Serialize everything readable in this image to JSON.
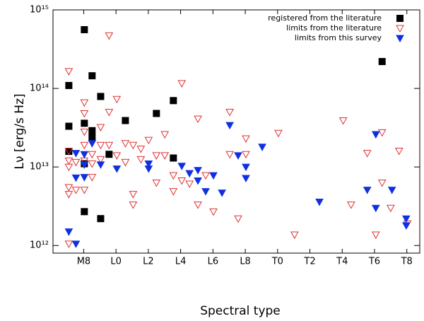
{
  "chart_data": {
    "type": "scatter",
    "x_label": "Spectral type",
    "y_label": "Lν [erg/s Hz]",
    "log_y": true,
    "legend": "top-right",
    "xlim": [
      6.1,
      28.8
    ],
    "ylim": [
      800000000000.0,
      1000000000000000.0
    ],
    "xticks": [
      {
        "value": 8,
        "label": "M8"
      },
      {
        "value": 10,
        "label": "L0"
      },
      {
        "value": 12,
        "label": "L2"
      },
      {
        "value": 14,
        "label": "L4"
      },
      {
        "value": 16,
        "label": "L6"
      },
      {
        "value": 18,
        "label": "L8"
      },
      {
        "value": 20,
        "label": "T0"
      },
      {
        "value": 22,
        "label": "T2"
      },
      {
        "value": 24,
        "label": "T4"
      },
      {
        "value": 26,
        "label": "T6"
      },
      {
        "value": 28,
        "label": "T8"
      }
    ],
    "yticks": [
      {
        "value": 1000000000000.0,
        "label": "10¹²"
      },
      {
        "value": 10000000000000.0,
        "label": "10¹³"
      },
      {
        "value": 100000000000000.0,
        "label": "10¹⁴"
      },
      {
        "value": 1000000000000000.0,
        "label": "10¹⁵"
      }
    ],
    "series": [
      {
        "name": "registered from the literature",
        "color": "#000000",
        "marker": "square",
        "x": [
          7.08,
          7.08,
          7.08,
          8.04,
          8.04,
          8.04,
          8.04,
          8.52,
          8.52,
          8.52,
          9.05,
          9.05,
          9.57,
          10.58,
          12.5,
          13.55,
          13.55,
          26.47
        ],
        "values": [
          15800000000000.0,
          109000000000000.0,
          33000000000000.0,
          560000000000000.0,
          36000000000000.0,
          2700000000000.0,
          11000000000000.0,
          145000000000000.0,
          29000000000000.0,
          24000000000000.0,
          79000000000000.0,
          2200000000000.0,
          14500000000000.0,
          39000000000000.0,
          48000000000000.0,
          70000000000000.0,
          13000000000000.0,
          220000000000000.0
        ]
      },
      {
        "name": "limits from the literature",
        "color": "#e03030",
        "marker": "triangle-down-open",
        "x": [
          7.08,
          7.08,
          7.08,
          7.08,
          7.08,
          7.08,
          7.08,
          7.52,
          7.52,
          8.04,
          8.04,
          8.04,
          8.04,
          8.04,
          8.04,
          8.52,
          8.52,
          8.52,
          9.05,
          9.05,
          9.05,
          9.57,
          9.57,
          9.57,
          10.05,
          10.05,
          10.58,
          10.58,
          11.06,
          11.06,
          11.06,
          11.54,
          11.54,
          12.02,
          12.5,
          12.5,
          13.02,
          13.02,
          13.55,
          13.55,
          14.07,
          14.07,
          14.55,
          15.07,
          15.07,
          15.55,
          16.03,
          17.04,
          17.04,
          17.56,
          18.04,
          18.04,
          20.05,
          21.05,
          24.06,
          24.55,
          25.55,
          26.08,
          26.47,
          26.47,
          27.0,
          27.52,
          28.04
        ],
        "values": [
          165000000000000.0,
          16000000000000.0,
          12000000000000.0,
          10000000000000.0,
          5500000000000.0,
          4500000000000.0,
          1050000000000.0,
          11500000000000.0,
          5100000000000.0,
          66000000000000.0,
          48000000000000.0,
          28000000000000.0,
          19000000000000.0,
          12000000000000.0,
          5100000000000.0,
          14500000000000.0,
          11000000000000.0,
          7400000000000.0,
          32000000000000.0,
          19000000000000.0,
          12500000000000.0,
          470000000000000.0,
          50000000000000.0,
          19000000000000.0,
          73000000000000.0,
          14000000000000.0,
          20000000000000.0,
          11500000000000.0,
          19000000000000.0,
          4500000000000.0,
          3300000000000.0,
          17000000000000.0,
          12500000000000.0,
          22000000000000.0,
          14000000000000.0,
          6300000000000.0,
          26000000000000.0,
          14000000000000.0,
          7800000000000.0,
          4900000000000.0,
          116000000000000.0,
          6700000000000.0,
          6100000000000.0,
          41000000000000.0,
          3300000000000.0,
          7800000000000.0,
          2700000000000.0,
          50000000000000.0,
          14500000000000.0,
          2200000000000.0,
          23000000000000.0,
          14500000000000.0,
          27000000000000.0,
          1370000000000.0,
          39000000000000.0,
          3300000000000.0,
          15000000000000.0,
          1370000000000.0,
          27500000000000.0,
          6300000000000.0,
          3000000000000.0,
          16000000000000.0,
          1900000000000.0
        ]
      },
      {
        "name": "limits from this survey",
        "color": "#1030e0",
        "marker": "triangle-down",
        "x": [
          7.08,
          7.52,
          7.52,
          7.52,
          8.04,
          8.04,
          8.04,
          8.52,
          9.05,
          10.05,
          12.02,
          12.02,
          14.07,
          14.55,
          15.07,
          15.07,
          15.55,
          16.03,
          16.56,
          17.04,
          17.56,
          18.04,
          18.04,
          19.05,
          22.59,
          25.55,
          26.08,
          26.08,
          27.08,
          27.96,
          27.96
        ],
        "values": [
          1500000000000.0,
          1050000000000.0,
          15000000000000.0,
          7300000000000.0,
          14500000000000.0,
          10700000000000.0,
          7400000000000.0,
          20000000000000.0,
          10700000000000.0,
          9500000000000.0,
          11000000000000.0,
          9500000000000.0,
          10300000000000.0,
          8300000000000.0,
          9100000000000.0,
          6700000000000.0,
          4900000000000.0,
          7800000000000.0,
          4700000000000.0,
          34000000000000.0,
          14000000000000.0,
          10000000000000.0,
          7200000000000.0,
          18000000000000.0,
          3600000000000.0,
          5100000000000.0,
          3000000000000.0,
          26000000000000.0,
          5100000000000.0,
          2200000000000.0,
          1800000000000.0
        ]
      }
    ]
  }
}
